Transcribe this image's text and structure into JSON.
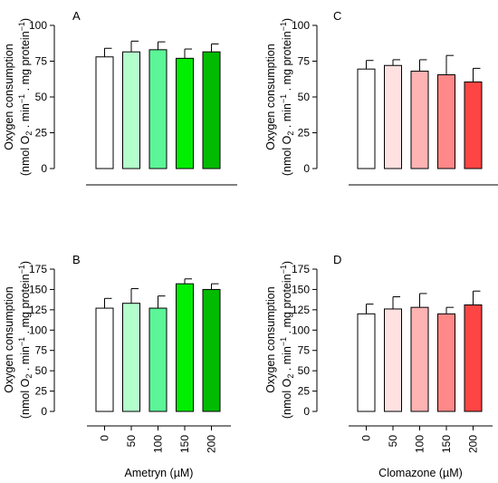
{
  "chart_data": [
    {
      "type": "bar",
      "panel": "A",
      "categories": [
        "0",
        "50",
        "100",
        "150",
        "200"
      ],
      "values": [
        78,
        81.5,
        83,
        77,
        81.5
      ],
      "errors": [
        6,
        7.5,
        5.5,
        6.5,
        5.5
      ],
      "colors": [
        "#ffffff",
        "#b3ffcc",
        "#5cf598",
        "#00ee00",
        "#00bb00"
      ],
      "ylabel_line1": "Oxygen consumption",
      "ylabel_line2": "(nmol O",
      "ylabel_line2_sub": "2",
      "ylabel_line2_rest": " . min",
      "ylabel_line2_sup": "−1",
      "ylabel_line2_rest2": " . mg protein",
      "ylabel_line2_sup2": "−1",
      "ylabel_line2_end": ")",
      "yticks": [
        "0",
        "25",
        "50",
        "75",
        "100"
      ],
      "ylim": [
        0,
        100
      ],
      "show_xticks": false,
      "xlabel": ""
    },
    {
      "type": "bar",
      "panel": "B",
      "categories": [
        "0",
        "50",
        "100",
        "150",
        "200"
      ],
      "values": [
        127,
        133,
        127,
        157,
        150
      ],
      "errors": [
        12,
        18,
        15,
        6,
        7
      ],
      "colors": [
        "#ffffff",
        "#b3ffcc",
        "#5cf598",
        "#00ee00",
        "#00bb00"
      ],
      "ylabel_line1": "Oxygen consumption",
      "ylabel_line2": "(nmol O",
      "ylabel_line2_sub": "2",
      "ylabel_line2_rest": " . min",
      "ylabel_line2_sup": "−1",
      "ylabel_line2_rest2": " . mg protein",
      "ylabel_line2_sup2": "−1",
      "ylabel_line2_end": ")",
      "yticks": [
        "0",
        "25",
        "50",
        "75",
        "100",
        "125",
        "150",
        "175"
      ],
      "ylim": [
        0,
        175
      ],
      "show_xticks": true,
      "xlabel": "Ametryn (µM)"
    },
    {
      "type": "bar",
      "panel": "C",
      "categories": [
        "0",
        "50",
        "100",
        "150",
        "200"
      ],
      "values": [
        69.5,
        72,
        68,
        65.5,
        60.5
      ],
      "errors": [
        6,
        4,
        8,
        13.5,
        9.5
      ],
      "colors": [
        "#ffffff",
        "#ffe1e1",
        "#ffb3b3",
        "#ff8888",
        "#ff4444"
      ],
      "ylabel_line1": "Oxygen consumption",
      "ylabel_line2": "(nmol O",
      "ylabel_line2_sub": "2",
      "ylabel_line2_rest": " . min",
      "ylabel_line2_sup": "−1",
      "ylabel_line2_rest2": " . mg protein",
      "ylabel_line2_sup2": "−1",
      "ylabel_line2_end": ")",
      "yticks": [
        "0",
        "25",
        "50",
        "75",
        "100"
      ],
      "ylim": [
        0,
        100
      ],
      "show_xticks": false,
      "xlabel": ""
    },
    {
      "type": "bar",
      "panel": "D",
      "categories": [
        "0",
        "50",
        "100",
        "150",
        "200"
      ],
      "values": [
        120,
        126,
        128,
        120,
        131
      ],
      "errors": [
        12,
        15,
        17,
        8,
        17
      ],
      "colors": [
        "#ffffff",
        "#ffe1e1",
        "#ffb3b3",
        "#ff8888",
        "#ff4444"
      ],
      "ylabel_line1": "Oxygen consumption",
      "ylabel_line2": "(nmol O",
      "ylabel_line2_sub": "2",
      "ylabel_line2_rest": " . min",
      "ylabel_line2_sup": "−1",
      "ylabel_line2_rest2": " . mg protein",
      "ylabel_line2_sup2": "−1",
      "ylabel_line2_end": ")",
      "yticks": [
        "0",
        "25",
        "50",
        "75",
        "100",
        "125",
        "150",
        "175"
      ],
      "ylim": [
        0,
        175
      ],
      "show_xticks": true,
      "xlabel": "Clomazone (µM)"
    }
  ]
}
